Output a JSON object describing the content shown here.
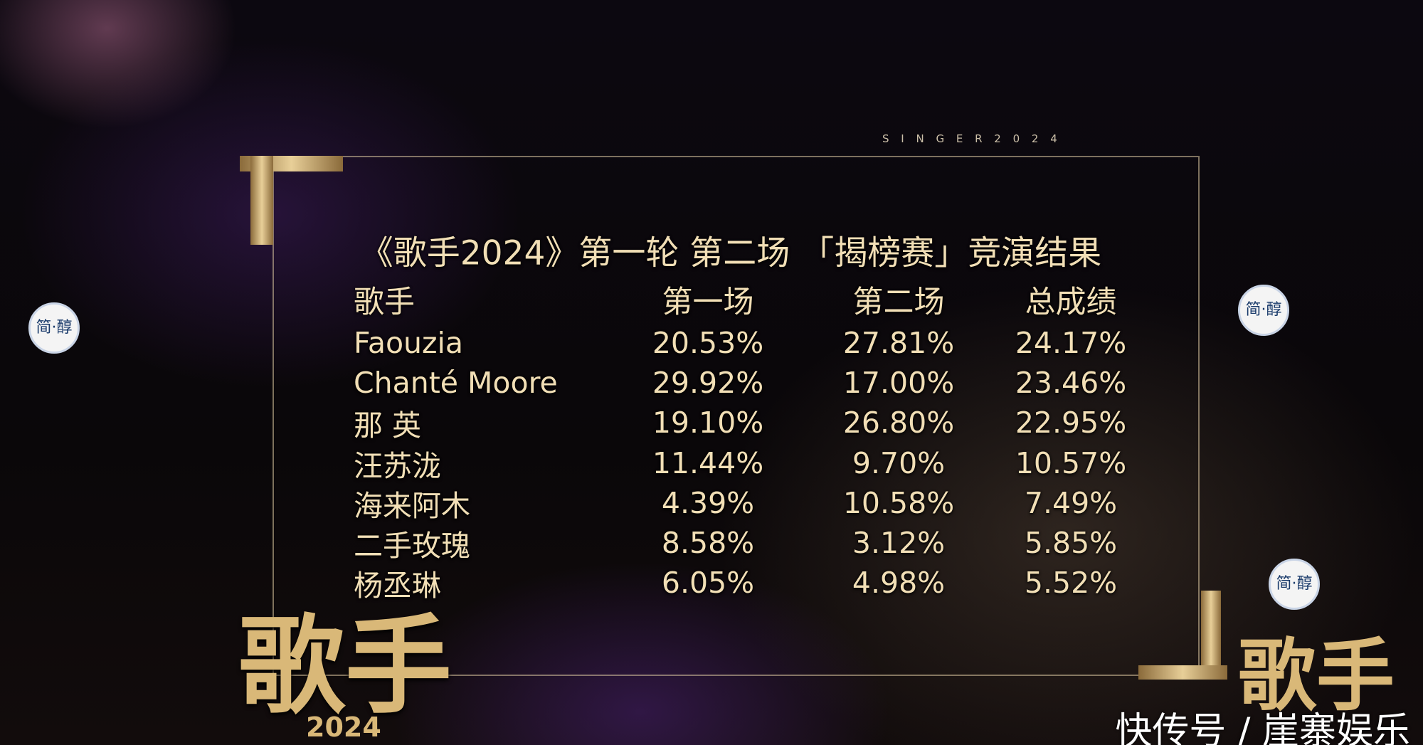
{
  "banner": "S I N G E R 2 0 2 4",
  "title": "《歌手2024》第一轮 第二场 「揭榜赛」竞演结果",
  "table": {
    "header": [
      "歌手",
      "第一场",
      "第二场",
      "总成绩"
    ],
    "rows": [
      [
        "Faouzia",
        "20.53%",
        "27.81%",
        "24.17%"
      ],
      [
        "Chanté Moore",
        "29.92%",
        "17.00%",
        "23.46%"
      ],
      [
        "那 英",
        "19.10%",
        "26.80%",
        "22.95%"
      ],
      [
        "汪苏泷",
        "11.44%",
        "9.70%",
        "10.57%"
      ],
      [
        "海来阿木",
        "4.39%",
        "10.58%",
        "7.49%"
      ],
      [
        "二手玫瑰",
        "8.58%",
        "3.12%",
        "5.85%"
      ],
      [
        "杨丞琳",
        "6.05%",
        "4.98%",
        "5.52%"
      ]
    ]
  },
  "logo": {
    "name": "歌手",
    "year": "2024"
  },
  "sponsor": "简·醇",
  "watermark": "快传号 / 崖寨娱乐"
}
